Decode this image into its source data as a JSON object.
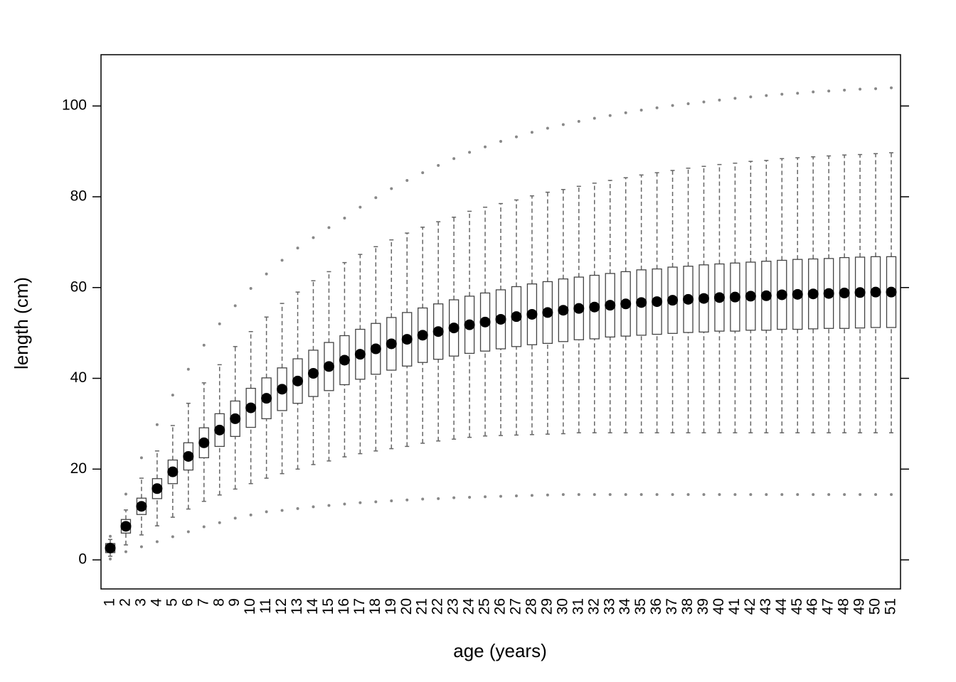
{
  "chart_data": {
    "type": "boxplot",
    "x_label": "age (years)",
    "y_label": "length (cm)",
    "categories": [
      "1",
      "2",
      "3",
      "4",
      "5",
      "6",
      "7",
      "8",
      "9",
      "10",
      "11",
      "12",
      "13",
      "14",
      "15",
      "16",
      "17",
      "18",
      "19",
      "20",
      "21",
      "22",
      "23",
      "24",
      "25",
      "26",
      "27",
      "28",
      "29",
      "30",
      "31",
      "32",
      "33",
      "34",
      "35",
      "36",
      "37",
      "38",
      "39",
      "40",
      "41",
      "42",
      "43",
      "44",
      "45",
      "46",
      "47",
      "48",
      "49",
      "50",
      "51"
    ],
    "ylim": [
      -6.4,
      111.3
    ],
    "yticks": [
      0,
      20,
      40,
      60,
      80,
      100
    ],
    "box_color": "#444444",
    "whisker_color": "#666666",
    "outlier_color": "#888888",
    "median_color": "#000000",
    "low": [
      0.8,
      3.3,
      5.5,
      7.5,
      9.4,
      11.2,
      12.9,
      14.3,
      15.6,
      16.8,
      18,
      19,
      20,
      21,
      21.8,
      22.7,
      23.4,
      24,
      24.5,
      25,
      25.7,
      26.2,
      26.6,
      27,
      27.3,
      27.4,
      27.5,
      27.6,
      27.7,
      27.8,
      28,
      28,
      28,
      28,
      28,
      28,
      28,
      28,
      28,
      28,
      28,
      28,
      28,
      28,
      28,
      28,
      28,
      28,
      28,
      28,
      28
    ],
    "q1": [
      1.6,
      5.9,
      10.0,
      13.5,
      16.8,
      19.8,
      22.5,
      25.0,
      27.2,
      29.2,
      31.1,
      32.9,
      34.5,
      36.0,
      37.3,
      38.6,
      39.8,
      40.9,
      41.8,
      42.7,
      43.5,
      44.2,
      44.9,
      45.5,
      46.0,
      46.5,
      47.0,
      47.4,
      47.7,
      48.1,
      48.5,
      48.7,
      49.1,
      49.3,
      49.5,
      49.7,
      49.9,
      50.1,
      50.2,
      50.4,
      50.4,
      50.6,
      50.6,
      50.8,
      50.8,
      50.9,
      51.0,
      51.0,
      51.1,
      51.2,
      51.2
    ],
    "median": [
      2.6,
      7.4,
      11.8,
      15.7,
      19.4,
      22.8,
      25.8,
      28.6,
      31.1,
      33.5,
      35.6,
      37.6,
      39.4,
      41.1,
      42.6,
      44.0,
      45.3,
      46.5,
      47.6,
      48.6,
      49.5,
      50.3,
      51.1,
      51.8,
      52.4,
      53.0,
      53.6,
      54.1,
      54.5,
      55.0,
      55.4,
      55.7,
      56.1,
      56.4,
      56.7,
      56.9,
      57.2,
      57.4,
      57.6,
      57.8,
      57.9,
      58.1,
      58.2,
      58.4,
      58.5,
      58.6,
      58.7,
      58.8,
      58.9,
      59.0,
      59.0
    ],
    "q3": [
      3.6,
      8.9,
      13.6,
      17.9,
      22.0,
      25.8,
      29.1,
      32.2,
      35.0,
      37.8,
      40.1,
      42.3,
      44.3,
      46.2,
      47.9,
      49.4,
      50.8,
      52.1,
      53.4,
      54.5,
      55.5,
      56.4,
      57.3,
      58.1,
      58.8,
      59.5,
      60.2,
      60.8,
      61.3,
      61.9,
      62.3,
      62.7,
      63.1,
      63.5,
      63.9,
      64.1,
      64.5,
      64.7,
      65.0,
      65.2,
      65.4,
      65.6,
      65.8,
      66.0,
      66.2,
      66.3,
      66.4,
      66.6,
      66.7,
      66.8,
      66.8
    ],
    "high": [
      4.5,
      11,
      18,
      24,
      29.6,
      34.5,
      39,
      43,
      47,
      50.3,
      53.5,
      56.5,
      59,
      61.5,
      63.5,
      65.5,
      67.3,
      69,
      70.5,
      72,
      73.3,
      74.5,
      75.5,
      76.8,
      77.7,
      78.5,
      79.3,
      80.2,
      81,
      81.6,
      82.3,
      83,
      83.6,
      84.2,
      84.8,
      85.3,
      85.8,
      86.3,
      86.7,
      87.1,
      87.4,
      87.8,
      88,
      88.4,
      88.6,
      88.8,
      89,
      89.2,
      89.3,
      89.5,
      89.7
    ],
    "outliers": [
      [
        0.2,
        5.2
      ],
      [
        1.8,
        14.5
      ],
      [
        2.9,
        22.5
      ],
      [
        4,
        29.8
      ],
      [
        5.1,
        36.3
      ],
      [
        6.2,
        42
      ],
      [
        7.3,
        47.3
      ],
      [
        8.2,
        52
      ],
      [
        9.2,
        56
      ],
      [
        9.9,
        59.8
      ],
      [
        10.6,
        63
      ],
      [
        10.9,
        66
      ],
      [
        11.3,
        68.7
      ],
      [
        11.7,
        71
      ],
      [
        12,
        73.2
      ],
      [
        12.3,
        75.3
      ],
      [
        12.6,
        77.7
      ],
      [
        12.8,
        79.8
      ],
      [
        13,
        81.8
      ],
      [
        13.2,
        83.6
      ],
      [
        13.4,
        85.3
      ],
      [
        13.5,
        86.9
      ],
      [
        13.7,
        88.4
      ],
      [
        13.8,
        89.8
      ],
      [
        13.9,
        91
      ],
      [
        14,
        92.2
      ],
      [
        14.1,
        93.2
      ],
      [
        14.2,
        94.2
      ],
      [
        14.3,
        95.1
      ],
      [
        14.4,
        95.9
      ],
      [
        14.4,
        96.6
      ],
      [
        14.4,
        97.3
      ],
      [
        14.4,
        97.9
      ],
      [
        14.4,
        98.5
      ],
      [
        14.4,
        99.1
      ],
      [
        14.4,
        99.6
      ],
      [
        14.4,
        100.1
      ],
      [
        14.4,
        100.5
      ],
      [
        14.4,
        100.9
      ],
      [
        14.4,
        101.3
      ],
      [
        14.4,
        101.7
      ],
      [
        14.4,
        102
      ],
      [
        14.4,
        102.3
      ],
      [
        14.4,
        102.6
      ],
      [
        14.4,
        102.8
      ],
      [
        14.4,
        103.1
      ],
      [
        14.4,
        103.3
      ],
      [
        14.4,
        103.5
      ],
      [
        14.4,
        103.7
      ],
      [
        14.4,
        103.8
      ],
      [
        14.4,
        104
      ]
    ]
  }
}
